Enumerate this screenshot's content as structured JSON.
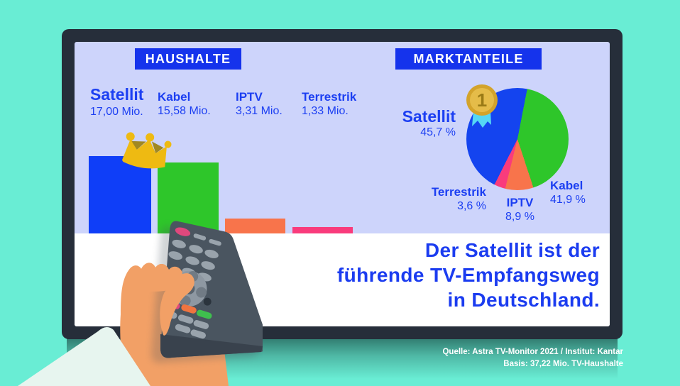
{
  "palette": {
    "background_teal": "#69edd4",
    "tv_frame": "#262e3a",
    "screen_lavender": "#cdd4fb",
    "band_white": "#ffffff",
    "badge_blue": "#1533ec",
    "text_blue": "#1c3ff2",
    "headline_blue": "#1b3cf0",
    "crown_gold": "#eeba12",
    "medal_gold": "#d3a32b",
    "ribbon_cyan": "#55d7f4"
  },
  "chart_data": [
    {
      "type": "bar",
      "title": "HAUSHALTE",
      "unit": "Mio. TV-Haushalte",
      "items": [
        {
          "label": "Satellit",
          "value": 17.0,
          "value_label": "17,00 Mio.",
          "color": "#0f3ef8"
        },
        {
          "label": "Kabel",
          "value": 15.58,
          "value_label": "15,58 Mio.",
          "color": "#2ec62a"
        },
        {
          "label": "IPTV",
          "value": 3.31,
          "value_label": "3,31 Mio.",
          "color": "#f8744b"
        },
        {
          "label": "Terrestrik",
          "value": 1.33,
          "value_label": "1,33 Mio.",
          "color": "#f93b7c"
        }
      ],
      "annotations": [
        "crown on leading bar (Satellit)"
      ]
    },
    {
      "type": "pie",
      "title": "MARKTANTEILE",
      "start_angle_deg": 11,
      "wheel_order": [
        1,
        2,
        3,
        0
      ],
      "items": [
        {
          "label": "Satellit",
          "value": 45.7,
          "value_label": "45,7 %",
          "color": "#1444ef"
        },
        {
          "label": "Kabel",
          "value": 41.9,
          "value_label": "41,9 %",
          "color": "#2ec62a"
        },
        {
          "label": "IPTV",
          "value": 8.9,
          "value_label": "8,9 %",
          "color": "#f8744b"
        },
        {
          "label": "Terrestrik",
          "value": 3.6,
          "value_label": "3,6 %",
          "color": "#f93b7c"
        }
      ],
      "annotations": [
        "gold medal rank 1 on Satellit slice"
      ]
    }
  ],
  "medal": {
    "rank": "1"
  },
  "headline": {
    "line1": "Der Satellit ist der",
    "line2": "führende TV-Empfangsweg",
    "line3": "in Deutschland."
  },
  "source": {
    "line1": "Quelle: Astra TV-Monitor 2021 / Institut: Kantar",
    "line2": "Basis: 37,22 Mio. TV-Haushalte"
  }
}
